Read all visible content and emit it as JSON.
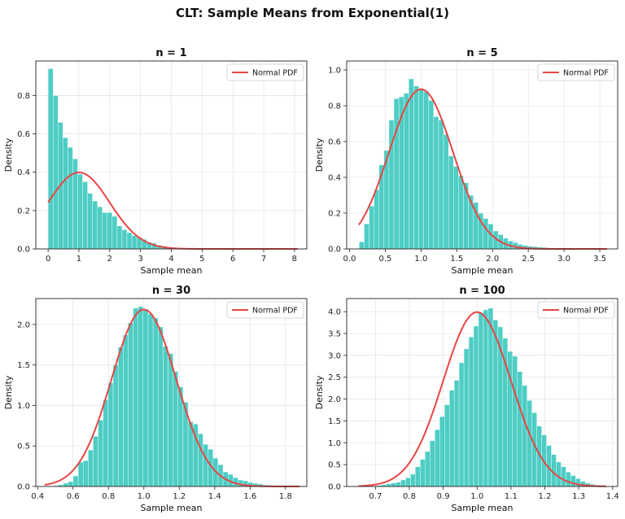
{
  "title": "CLT: Sample Means from Exponential(1)",
  "colors": {
    "bar": "#4ecdc4",
    "bar_edge": "#ffffff",
    "pdf": "#e84545",
    "grid": "#e6e6e6",
    "axis": "#222222"
  },
  "chart_data": [
    {
      "type": "bar",
      "title": "n = 1",
      "xlabel": "Sample mean",
      "ylabel": "Density",
      "legend": "Normal PDF",
      "legend_position": "top-right",
      "grid": true,
      "xlim": [
        -0.4,
        8.4
      ],
      "ylim": [
        0,
        0.98
      ],
      "xticks": [
        0,
        1,
        2,
        3,
        4,
        5,
        6,
        7,
        8
      ],
      "yticks": [
        0.0,
        0.2,
        0.4,
        0.6,
        0.8
      ],
      "tick_decimals": 1,
      "bin_start": 0.0,
      "bin_width": 0.16,
      "values": [
        0.94,
        0.8,
        0.66,
        0.58,
        0.53,
        0.47,
        0.39,
        0.35,
        0.29,
        0.25,
        0.22,
        0.19,
        0.19,
        0.17,
        0.12,
        0.1,
        0.085,
        0.07,
        0.06,
        0.05,
        0.035,
        0.03,
        0.02,
        0.015,
        0.01,
        0.008,
        0.005,
        0.004,
        0.003,
        0.002,
        0.002,
        0.001,
        0.001,
        0.001,
        0.0005,
        0.0005,
        0.0005,
        0.0005,
        0.0003,
        0.0003,
        0.0002,
        0.0002,
        0.0001,
        0.0001,
        0.0001,
        0.0001,
        0.0001,
        0.0001,
        0.0001,
        0.0001
      ],
      "pdf_mean": 1.0,
      "pdf_sd": 1.0,
      "pdf_x_range": [
        0.0,
        8.1
      ]
    },
    {
      "type": "bar",
      "title": "n = 5",
      "xlabel": "Sample mean",
      "ylabel": "Density",
      "legend": "Normal PDF",
      "legend_position": "top-right",
      "grid": true,
      "xlim": [
        -0.04,
        3.75
      ],
      "ylim": [
        0,
        1.05
      ],
      "xticks": [
        0.0,
        0.5,
        1.0,
        1.5,
        2.0,
        2.5,
        3.0,
        3.5
      ],
      "yticks": [
        0.0,
        0.2,
        0.4,
        0.6,
        0.8,
        1.0
      ],
      "tick_decimals": 1,
      "bin_start": 0.135,
      "bin_width": 0.0694,
      "values": [
        0.04,
        0.14,
        0.24,
        0.33,
        0.47,
        0.55,
        0.72,
        0.84,
        0.85,
        0.87,
        0.95,
        0.91,
        0.89,
        0.88,
        0.83,
        0.74,
        0.72,
        0.64,
        0.52,
        0.46,
        0.41,
        0.37,
        0.3,
        0.26,
        0.2,
        0.17,
        0.14,
        0.1,
        0.08,
        0.06,
        0.045,
        0.035,
        0.025,
        0.02,
        0.015,
        0.013,
        0.01,
        0.008,
        0.006,
        0.005,
        0.004,
        0.003,
        0.002,
        0.002,
        0.001,
        0.001,
        0.001,
        0.001,
        0.001,
        0.001
      ],
      "pdf_mean": 1.0,
      "pdf_sd": 0.447,
      "pdf_x_range": [
        0.13,
        3.6
      ]
    },
    {
      "type": "bar",
      "title": "n = 30",
      "xlabel": "Sample mean",
      "ylabel": "Density",
      "legend": "Normal PDF",
      "legend_position": "top-right",
      "grid": true,
      "xlim": [
        0.39,
        1.92
      ],
      "ylim": [
        0,
        2.32
      ],
      "xticks": [
        0.4,
        0.6,
        0.8,
        1.0,
        1.2,
        1.4,
        1.6,
        1.8
      ],
      "yticks": [
        0.0,
        0.5,
        1.0,
        1.5,
        2.0
      ],
      "tick_decimals": 1,
      "bin_start": 0.46,
      "bin_width": 0.0282,
      "values": [
        0.005,
        0.01,
        0.02,
        0.04,
        0.06,
        0.13,
        0.3,
        0.32,
        0.45,
        0.62,
        0.82,
        1.07,
        1.28,
        1.5,
        1.72,
        1.87,
        2.02,
        2.2,
        2.22,
        2.19,
        2.13,
        2.08,
        1.97,
        1.73,
        1.64,
        1.42,
        1.23,
        1.04,
        0.8,
        0.77,
        0.65,
        0.52,
        0.46,
        0.35,
        0.27,
        0.18,
        0.15,
        0.11,
        0.08,
        0.07,
        0.05,
        0.04,
        0.03,
        0.02,
        0.015,
        0.01,
        0.008,
        0.005,
        0.003,
        0.002
      ],
      "pdf_mean": 1.0,
      "pdf_sd": 0.1826,
      "pdf_x_range": [
        0.44,
        1.88
      ]
    },
    {
      "type": "bar",
      "title": "n = 100",
      "xlabel": "Sample mean",
      "ylabel": "Density",
      "legend": "Normal PDF",
      "legend_position": "top-right",
      "grid": true,
      "xlim": [
        0.615,
        1.415
      ],
      "ylim": [
        0,
        4.3
      ],
      "xticks": [
        0.7,
        0.8,
        0.9,
        1.0,
        1.1,
        1.2,
        1.3,
        1.4
      ],
      "yticks": [
        0.0,
        0.5,
        1.0,
        1.5,
        2.0,
        2.5,
        3.0,
        3.5,
        4.0
      ],
      "tick_decimals": 1,
      "bin_start": 0.66,
      "bin_width": 0.01434,
      "values": [
        0.005,
        0.01,
        0.015,
        0.02,
        0.04,
        0.06,
        0.08,
        0.1,
        0.15,
        0.2,
        0.28,
        0.45,
        0.62,
        0.8,
        1.05,
        1.3,
        1.6,
        1.87,
        2.2,
        2.43,
        2.83,
        3.15,
        3.42,
        3.67,
        3.98,
        4.04,
        4.08,
        3.81,
        3.65,
        3.39,
        3.09,
        2.98,
        2.63,
        2.31,
        1.97,
        1.69,
        1.38,
        1.18,
        0.94,
        0.73,
        0.56,
        0.45,
        0.33,
        0.25,
        0.18,
        0.12,
        0.08,
        0.05,
        0.03,
        0.02
      ],
      "pdf_mean": 1.0,
      "pdf_sd": 0.1,
      "pdf_x_range": [
        0.65,
        1.38
      ]
    }
  ]
}
